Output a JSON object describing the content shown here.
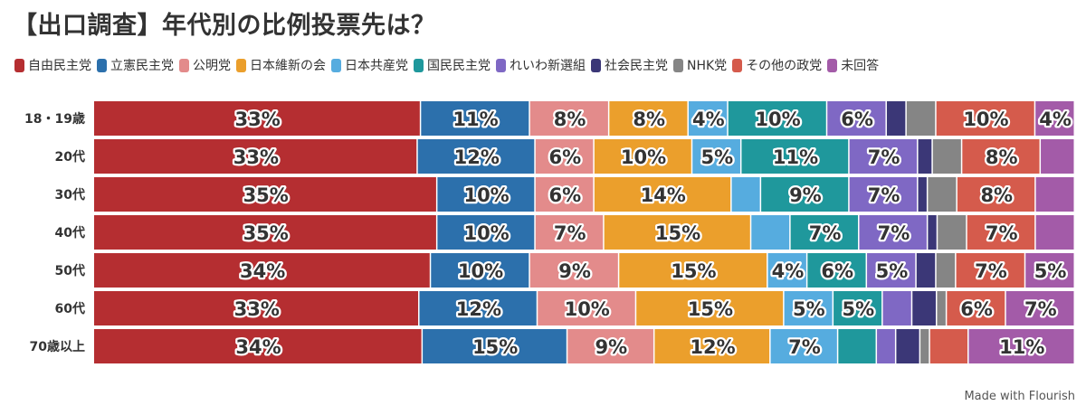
{
  "title": "【出口調査】年代別の比例投票先は？",
  "credit": "Made with Flourish",
  "colors": [
    "#b52e31",
    "#2c70ac",
    "#e38b8b",
    "#eb9f2c",
    "#56acdf",
    "#1f989c",
    "#7f68c4",
    "#3b3777",
    "#858585",
    "#d55b4c",
    "#a35ba8"
  ],
  "chart_data": {
    "type": "bar",
    "orientation": "horizontal",
    "stacked": "percent",
    "legend_position": "top",
    "categories": [
      "18・19歳",
      "20代",
      "30代",
      "40代",
      "50代",
      "60代",
      "70歳以上"
    ],
    "series": [
      {
        "name": "自由民主党",
        "values": [
          33,
          33,
          35,
          35,
          34,
          33,
          34
        ]
      },
      {
        "name": "立憲民主党",
        "values": [
          11,
          12,
          10,
          10,
          10,
          12,
          15
        ]
      },
      {
        "name": "公明党",
        "values": [
          8,
          6,
          6,
          7,
          9,
          10,
          9
        ]
      },
      {
        "name": "日本維新の会",
        "values": [
          8,
          10,
          14,
          15,
          15,
          15,
          12
        ]
      },
      {
        "name": "日本共産党",
        "values": [
          4,
          5,
          3,
          4,
          4,
          5,
          7
        ]
      },
      {
        "name": "国民民主党",
        "values": [
          10,
          11,
          9,
          7,
          6,
          5,
          4
        ]
      },
      {
        "name": "れいわ新選組",
        "values": [
          6,
          7,
          7,
          7,
          5,
          3,
          2
        ]
      },
      {
        "name": "社会民主党",
        "values": [
          2,
          1.5,
          1,
          1,
          2,
          2.5,
          2.5
        ]
      },
      {
        "name": "NHK党",
        "values": [
          3,
          3,
          3,
          3,
          2,
          1,
          1
        ]
      },
      {
        "name": "その他の政党",
        "values": [
          10,
          8,
          8,
          7,
          7,
          6,
          4
        ]
      },
      {
        "name": "未回答",
        "values": [
          4,
          3.5,
          4,
          4,
          5,
          7,
          11
        ]
      }
    ],
    "data_labels": {
      "18・19歳": [
        "33%",
        "11%",
        "8%",
        "8%",
        "4%",
        "10%",
        "6%",
        "",
        "",
        "10%",
        "4%"
      ],
      "20代": [
        "33%",
        "12%",
        "6%",
        "10%",
        "5%",
        "11%",
        "7%",
        "",
        "",
        "8%",
        ""
      ],
      "30代": [
        "35%",
        "10%",
        "6%",
        "14%",
        "",
        "9%",
        "7%",
        "",
        "",
        "8%",
        ""
      ],
      "40代": [
        "35%",
        "10%",
        "7%",
        "15%",
        "",
        "7%",
        "7%",
        "",
        "",
        "7%",
        ""
      ],
      "50代": [
        "34%",
        "10%",
        "9%",
        "15%",
        "4%",
        "6%",
        "5%",
        "",
        "",
        "7%",
        "5%"
      ],
      "60代": [
        "33%",
        "12%",
        "10%",
        "15%",
        "5%",
        "5%",
        "",
        "",
        "",
        "6%",
        "7%"
      ],
      "70歳以上": [
        "34%",
        "15%",
        "9%",
        "12%",
        "7%",
        "",
        "",
        "",
        "",
        "",
        "11%"
      ]
    }
  }
}
